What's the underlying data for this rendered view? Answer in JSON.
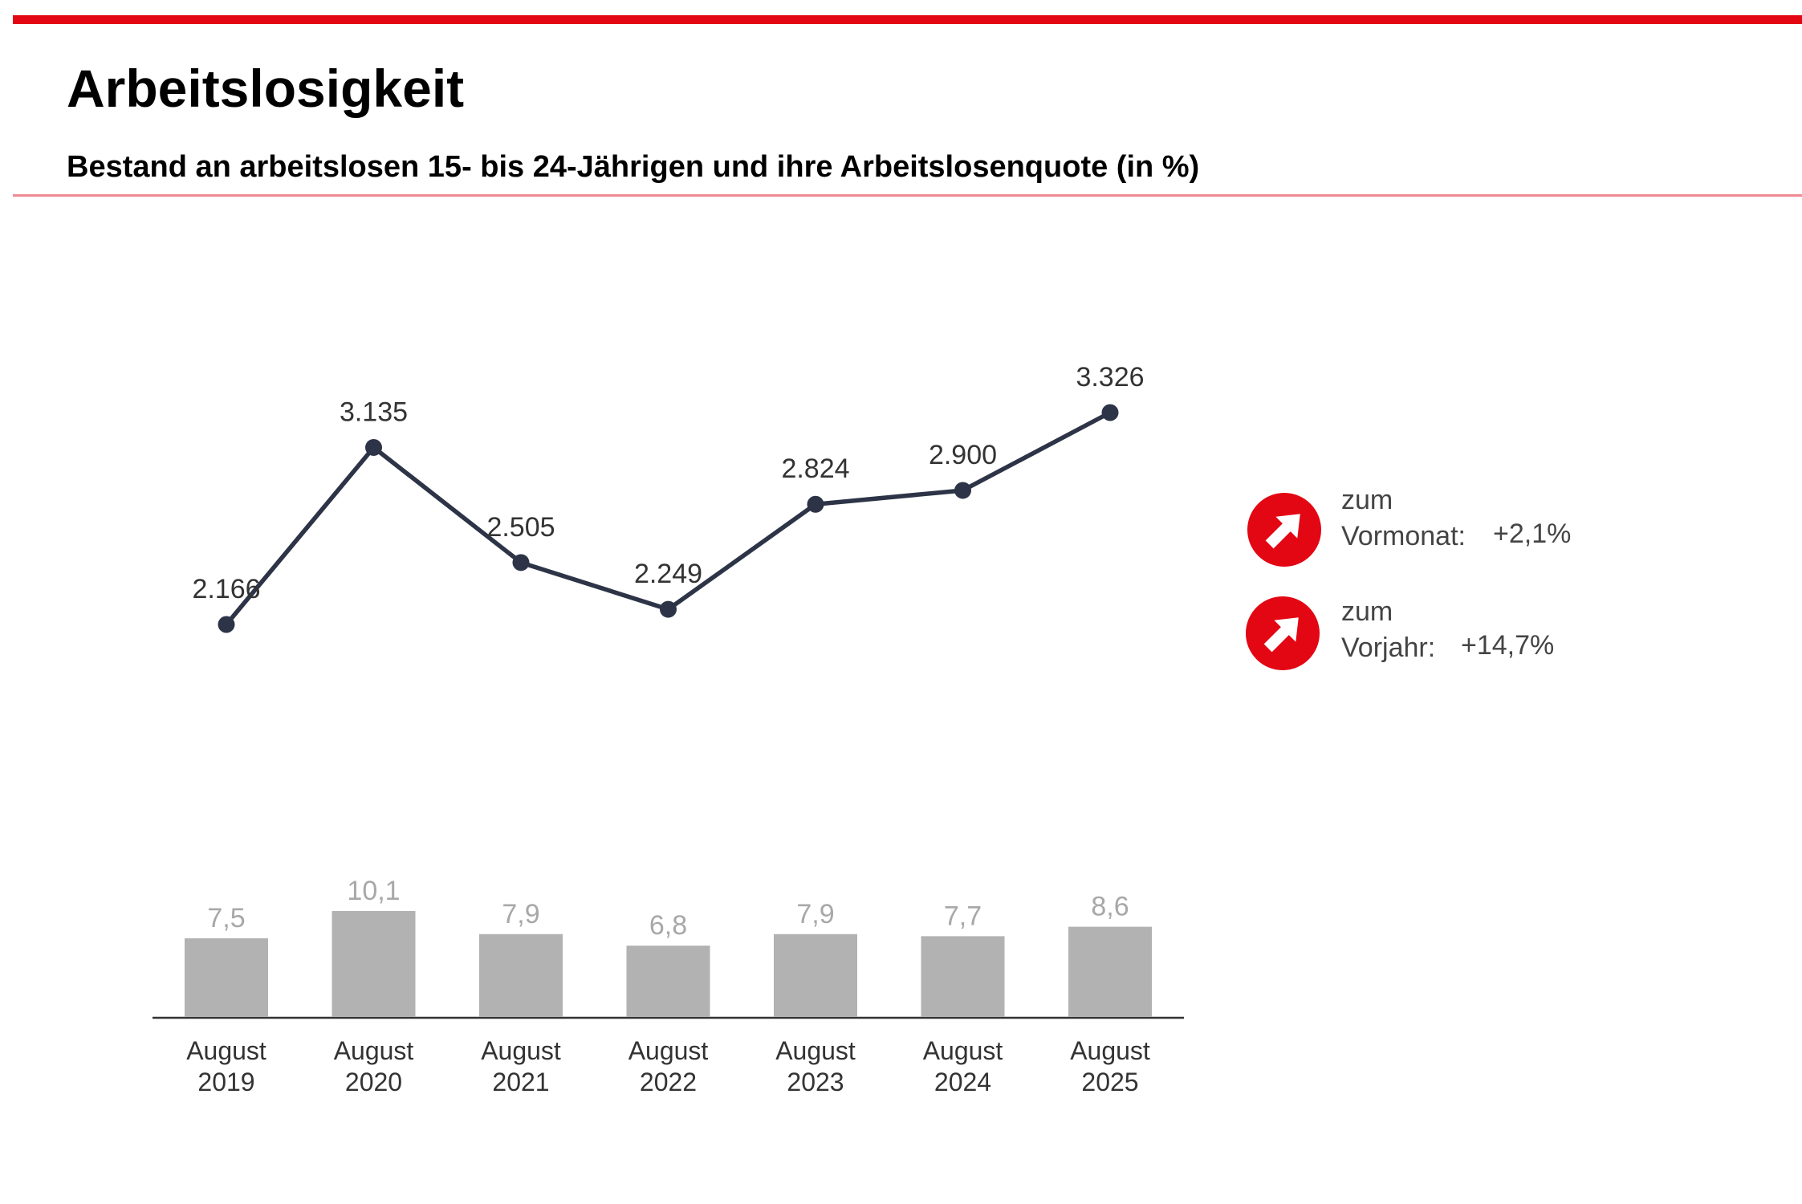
{
  "chart_data": {
    "type": "line-bar",
    "title": "Arbeitslosigkeit",
    "subtitle": "Bestand an arbeitslosen 15- bis 24-Jährigen und ihre Arbeitslosenquote (in %)",
    "categories": [
      "August 2019",
      "August 2020",
      "August 2021",
      "August 2022",
      "August 2023",
      "August 2024",
      "August 2025"
    ],
    "series": [
      {
        "type": "line",
        "color": "#2d3447",
        "values": [
          2166,
          3135,
          2505,
          2249,
          2824,
          2900,
          3326
        ],
        "value_labels": [
          "2.166",
          "3.135",
          "2.505",
          "2.249",
          "2.824",
          "2.900",
          "3.326"
        ]
      },
      {
        "type": "bar",
        "color": "#b2b2b2",
        "values": [
          7.5,
          10.1,
          7.9,
          6.8,
          7.9,
          7.7,
          8.6
        ],
        "value_labels": [
          "7,5",
          "10,1",
          "7,9",
          "6,8",
          "7,9",
          "7,7",
          "8,6"
        ]
      }
    ],
    "annotations": [
      {
        "label": "zum Vormonat:",
        "value": "+2,1%",
        "color": "#e30613"
      },
      {
        "label": "zum Vorjahr:",
        "value": "+14,7%",
        "color": "#e30613"
      }
    ]
  }
}
